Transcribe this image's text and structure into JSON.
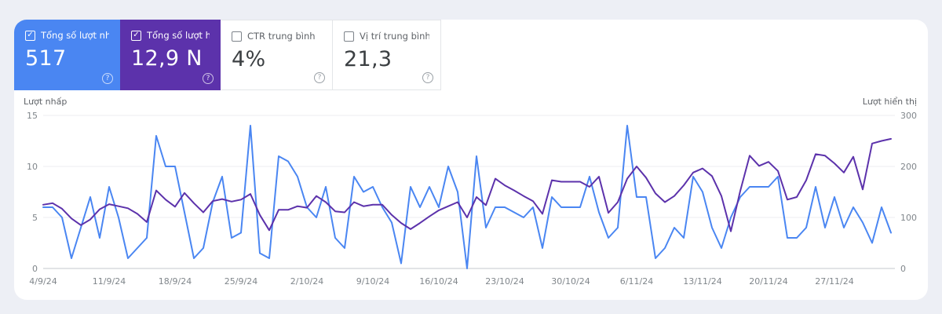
{
  "cards": [
    {
      "label": "Tổng số lượt nh…",
      "value": "517",
      "checked": true,
      "bg": "#4a86f2",
      "help": "?"
    },
    {
      "label": "Tổng số lượt hiể…",
      "value": "12,9 N",
      "checked": true,
      "bg": "#5c32ab",
      "help": "?"
    },
    {
      "label": "CTR trung bình",
      "value": "4%",
      "checked": false,
      "bg": "#ffffff",
      "help": "?"
    },
    {
      "label": "Vị trí trung bình",
      "value": "21,3",
      "checked": false,
      "bg": "#ffffff",
      "help": "?"
    }
  ],
  "checkmark": "✓",
  "chart_data": {
    "type": "line",
    "x_unit": "day",
    "x_start": "4/9/24",
    "x_end": "3/12/24",
    "x_tick_labels": [
      "4/9/24",
      "11/9/24",
      "18/9/24",
      "25/9/24",
      "2/10/24",
      "9/10/24",
      "16/10/24",
      "23/10/24",
      "30/10/24",
      "6/11/24",
      "13/11/24",
      "20/11/24",
      "27/11/24"
    ],
    "x_tick_interval_days": 7,
    "grid": "horizontal",
    "legend_position": "none",
    "left_axis": {
      "title": "Lượt nhấp",
      "range": [
        0,
        15
      ],
      "ticks": [
        0,
        5,
        10,
        15
      ]
    },
    "right_axis": {
      "title": "Lượt hiển thị",
      "range": [
        0,
        300
      ],
      "ticks": [
        0,
        100,
        200,
        300
      ]
    },
    "series": [
      {
        "name": "Lượt nhấp",
        "axis": "left",
        "color": "#4a86f2",
        "values": [
          6,
          6,
          5,
          1,
          4,
          7,
          3,
          8,
          5,
          1,
          2,
          3,
          13,
          10,
          10,
          5.5,
          1,
          2,
          6.5,
          9,
          3,
          3.5,
          14,
          1.5,
          1,
          11,
          10.5,
          9,
          6,
          5,
          8,
          3,
          2,
          9,
          7.5,
          8,
          6,
          4.5,
          0.5,
          8,
          6,
          8,
          6,
          10,
          7.5,
          0,
          11,
          4,
          6,
          6,
          5.5,
          5,
          6,
          2,
          7,
          6,
          6,
          6,
          9,
          5.5,
          3,
          4,
          14,
          7,
          7,
          1,
          2,
          4,
          3,
          9,
          7.5,
          4,
          2,
          5,
          7,
          8,
          8,
          8,
          9,
          3,
          3,
          4,
          8,
          4,
          7,
          4,
          6,
          4.5,
          2.5,
          6,
          3.5
        ]
      },
      {
        "name": "Lượt hiển thị",
        "axis": "right",
        "color": "#5c32ab",
        "values": [
          125,
          128,
          117,
          98,
          85,
          96,
          116,
          126,
          122,
          118,
          107,
          91,
          153,
          135,
          121,
          148,
          128,
          110,
          132,
          136,
          131,
          135,
          146,
          105,
          75,
          115,
          115,
          122,
          119,
          142,
          130,
          112,
          110,
          130,
          122,
          125,
          125,
          105,
          89,
          77,
          89,
          102,
          114,
          122,
          130,
          100,
          140,
          124,
          176,
          163,
          153,
          142,
          132,
          107,
          173,
          170,
          170,
          170,
          160,
          180,
          109,
          130,
          176,
          200,
          178,
          147,
          130,
          142,
          163,
          188,
          196,
          181,
          142,
          73,
          152,
          221,
          201,
          209,
          191,
          135,
          140,
          173,
          224,
          221,
          206,
          188,
          219,
          155,
          245,
          250,
          254
        ]
      }
    ]
  }
}
